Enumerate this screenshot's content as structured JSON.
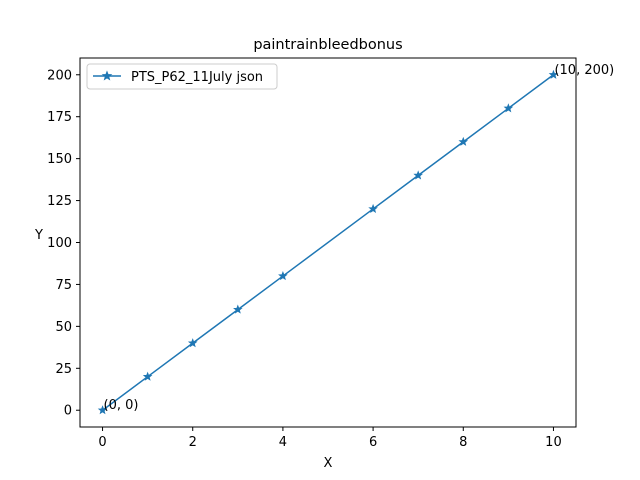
{
  "chart_data": {
    "type": "line",
    "title": "paintrainbleedbonus",
    "xlabel": "X",
    "ylabel": "Y",
    "xlim": [
      -0.5,
      10.5
    ],
    "ylim": [
      -10,
      210
    ],
    "x_ticks": [
      0,
      2,
      4,
      6,
      8,
      10
    ],
    "y_ticks": [
      0,
      25,
      50,
      75,
      100,
      125,
      150,
      175,
      200
    ],
    "grid": false,
    "legend_position": "upper-left",
    "series": [
      {
        "name": "PTS_P62_11July json",
        "color": "#1f77b4",
        "marker": "star",
        "x": [
          0,
          1,
          2,
          3,
          4,
          6,
          7,
          8,
          9,
          10
        ],
        "y": [
          0,
          20,
          40,
          60,
          80,
          120,
          140,
          160,
          180,
          200
        ]
      }
    ],
    "annotations": [
      {
        "text": "(0, 0)",
        "x": 0,
        "y": 0
      },
      {
        "text": "(10, 200)",
        "x": 10,
        "y": 200
      }
    ]
  }
}
